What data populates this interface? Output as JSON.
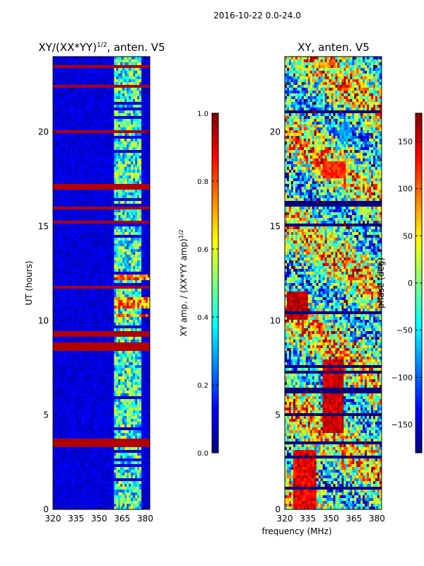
{
  "suptitle": "2016-10-22 0.0-24.0",
  "shared_xlabel": "frequency (MHz)",
  "chart_data": [
    {
      "type": "heatmap",
      "title_main": "XY/(XX*YY)",
      "title_sup": "1/2",
      "title_tail": ", anten. V5",
      "ylabel": "UT (hours)",
      "xlim": [
        320,
        383
      ],
      "ylim": [
        0,
        24
      ],
      "xticks": [
        320,
        335,
        350,
        365,
        380
      ],
      "yticks": [
        0,
        5,
        10,
        15,
        20
      ],
      "colormap": "jet",
      "colorbar": {
        "label_main": "XY amp. / (XX*YY amp)",
        "label_sup": "1/2",
        "range": [
          0.0,
          1.0
        ],
        "ticks": [
          "0.0",
          "0.2",
          "0.4",
          "0.6",
          "0.8",
          "1.0"
        ],
        "tick_values": [
          0.0,
          0.2,
          0.4,
          0.6,
          0.8,
          1.0
        ]
      },
      "pattern": {
        "background_value": 0.05,
        "active_band_mhz": [
          360,
          378
        ],
        "bright_rows_hours": [
          10.3,
          10.8,
          11.1,
          12.3
        ],
        "rfi_rows_hours": [
          3.4,
          3.6,
          8.5,
          8.7,
          9.3,
          11.8,
          15.2,
          16.0,
          17.0,
          17.2,
          20.0,
          22.4,
          23.5
        ]
      }
    },
    {
      "type": "heatmap",
      "title": "XY, anten. V5",
      "xlim": [
        320,
        383
      ],
      "ylim": [
        0,
        24
      ],
      "xticks": [
        320,
        335,
        350,
        365,
        380
      ],
      "yticks": [
        0,
        5,
        10,
        15,
        20
      ],
      "colormap": "jet",
      "colorbar": {
        "label": "phase (deg)",
        "range": [
          -180,
          180
        ],
        "ticks": [
          "150",
          "100",
          "50",
          "0",
          "−50",
          "−100",
          "−150"
        ],
        "tick_values": [
          150,
          100,
          50,
          0,
          -50,
          -100,
          -150
        ]
      },
      "pattern": {
        "description_phase_bands": [
          {
            "hours": [
              0,
              3.2
            ],
            "mhz": [
              325,
              340
            ],
            "phase": 140
          },
          {
            "hours": [
              4,
              8
            ],
            "mhz": [
              345,
              358
            ],
            "phase": 150
          },
          {
            "hours": [
              10,
              11.5
            ],
            "mhz": [
              322,
              335
            ],
            "phase": 160
          },
          {
            "hours": [
              17.5,
              18.5
            ],
            "mhz": [
              345,
              360
            ],
            "phase": 120
          },
          {
            "hours": [
              19.5,
              20.5
            ],
            "mhz": [
              355,
              362
            ],
            "phase": -80
          }
        ]
      }
    }
  ]
}
